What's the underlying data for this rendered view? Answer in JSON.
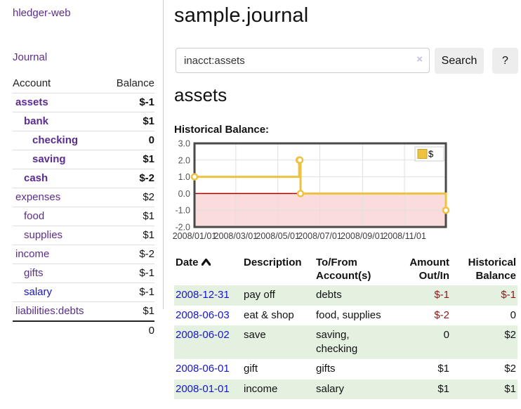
{
  "app": {
    "brand": "hledger-web",
    "nav_journal": "Journal"
  },
  "colors": {
    "link_purple": "#5c2d91",
    "link_blue": "#1515d0",
    "negative_strong": "#8b1a1a",
    "negative_soft": "#c27a7a",
    "row_stripe_green": "#e4f1e1",
    "series_gold": "#edc240",
    "chart_negative_fill": "#fbdcdc",
    "chart_zero_line": "#a40000"
  },
  "sidebar": {
    "header": {
      "account": "Account",
      "balance": "Balance"
    },
    "rows": [
      {
        "account": "assets",
        "balance": "$-1",
        "level": 1,
        "bold": true,
        "neg": "strong"
      },
      {
        "account": "bank",
        "balance": "$1",
        "level": 2,
        "bold": true,
        "neg": ""
      },
      {
        "account": "checking",
        "balance": "0",
        "level": 3,
        "bold": true,
        "neg": ""
      },
      {
        "account": "saving",
        "balance": "$1",
        "level": 3,
        "bold": true,
        "neg": ""
      },
      {
        "account": "cash",
        "balance": "$-2",
        "level": 2,
        "bold": true,
        "neg": "strong"
      },
      {
        "account": "expenses",
        "balance": "$2",
        "level": 1,
        "bold": false,
        "neg": ""
      },
      {
        "account": "food",
        "balance": "$1",
        "level": 2,
        "bold": false,
        "neg": ""
      },
      {
        "account": "supplies",
        "balance": "$1",
        "level": 2,
        "bold": false,
        "neg": ""
      },
      {
        "account": "income",
        "balance": "$-2",
        "level": 1,
        "bold": false,
        "neg": "soft"
      },
      {
        "account": "gifts",
        "balance": "$-1",
        "level": 2,
        "bold": false,
        "neg": "soft"
      },
      {
        "account": "salary",
        "balance": "$-1",
        "level": 2,
        "bold": false,
        "neg": "soft",
        "link": "blue"
      },
      {
        "account": "liabilities:debts",
        "balance": "$1",
        "level": 1,
        "bold": false,
        "neg": ""
      }
    ],
    "total": "0"
  },
  "main": {
    "title": "sample.journal",
    "search": {
      "value": "inacct:assets",
      "clear": "×",
      "button": "Search",
      "help": "?"
    },
    "account_heading": "assets",
    "chart_label": "Historical Balance:"
  },
  "chart_data": {
    "type": "line",
    "title": "Historical Balance",
    "step": true,
    "series": [
      {
        "name": "$",
        "color": "#edc240",
        "points": [
          [
            "2008-01-01",
            1
          ],
          [
            "2008-06-01",
            2
          ],
          [
            "2008-06-02",
            2
          ],
          [
            "2008-06-03",
            0
          ],
          [
            "2008-12-31",
            -1
          ]
        ]
      }
    ],
    "xlim": [
      "2008-01-01",
      "2008-12-31"
    ],
    "ylim": [
      -2,
      3
    ],
    "yticks": [
      3,
      2,
      1,
      0,
      -1,
      -2
    ],
    "xticks": [
      {
        "date": "2008-01-01",
        "label": "2008/01/01"
      },
      {
        "date": "2008-03-01",
        "label": "2008/03/01"
      },
      {
        "date": "2008-05-01",
        "label": "2008/05/01"
      },
      {
        "date": "2008-07-01",
        "label": "2008/07/01"
      },
      {
        "date": "2008-09-01",
        "label": "2008/09/01"
      },
      {
        "date": "2008-11-01",
        "label": "2008/11/01"
      }
    ],
    "grid": true,
    "negative_fill": "#fbdcdc",
    "zero_line_color": "#a40000",
    "legend": {
      "label": "$",
      "position": "top-right"
    }
  },
  "transactions": {
    "headers": [
      {
        "lines": [
          "Date"
        ],
        "sort": "asc",
        "align": "left"
      },
      {
        "lines": [
          "Description"
        ],
        "align": "left"
      },
      {
        "lines": [
          "To/From",
          "Account(s)"
        ],
        "align": "left"
      },
      {
        "lines": [
          "Amount",
          "Out/In"
        ],
        "align": "right"
      },
      {
        "lines": [
          "Historical",
          "Balance"
        ],
        "align": "right"
      }
    ],
    "rows": [
      {
        "date": "2008-12-31",
        "description": "pay off",
        "accounts": "debts",
        "amount": "$-1",
        "amount_neg": true,
        "balance": "$-1",
        "balance_neg": true
      },
      {
        "date": "2008-06-03",
        "description": "eat & shop",
        "accounts": "food, supplies",
        "amount": "$-2",
        "amount_neg": true,
        "balance": "0",
        "balance_neg": false
      },
      {
        "date": "2008-06-02",
        "description": "save",
        "accounts": "saving, checking",
        "amount": "0",
        "amount_neg": false,
        "balance": "$2",
        "balance_neg": false
      },
      {
        "date": "2008-06-01",
        "description": "gift",
        "accounts": "gifts",
        "amount": "$1",
        "amount_neg": false,
        "balance": "$2",
        "balance_neg": false
      },
      {
        "date": "2008-01-01",
        "description": "income",
        "accounts": "salary",
        "amount": "$1",
        "amount_neg": false,
        "balance": "$1",
        "balance_neg": false
      }
    ]
  }
}
